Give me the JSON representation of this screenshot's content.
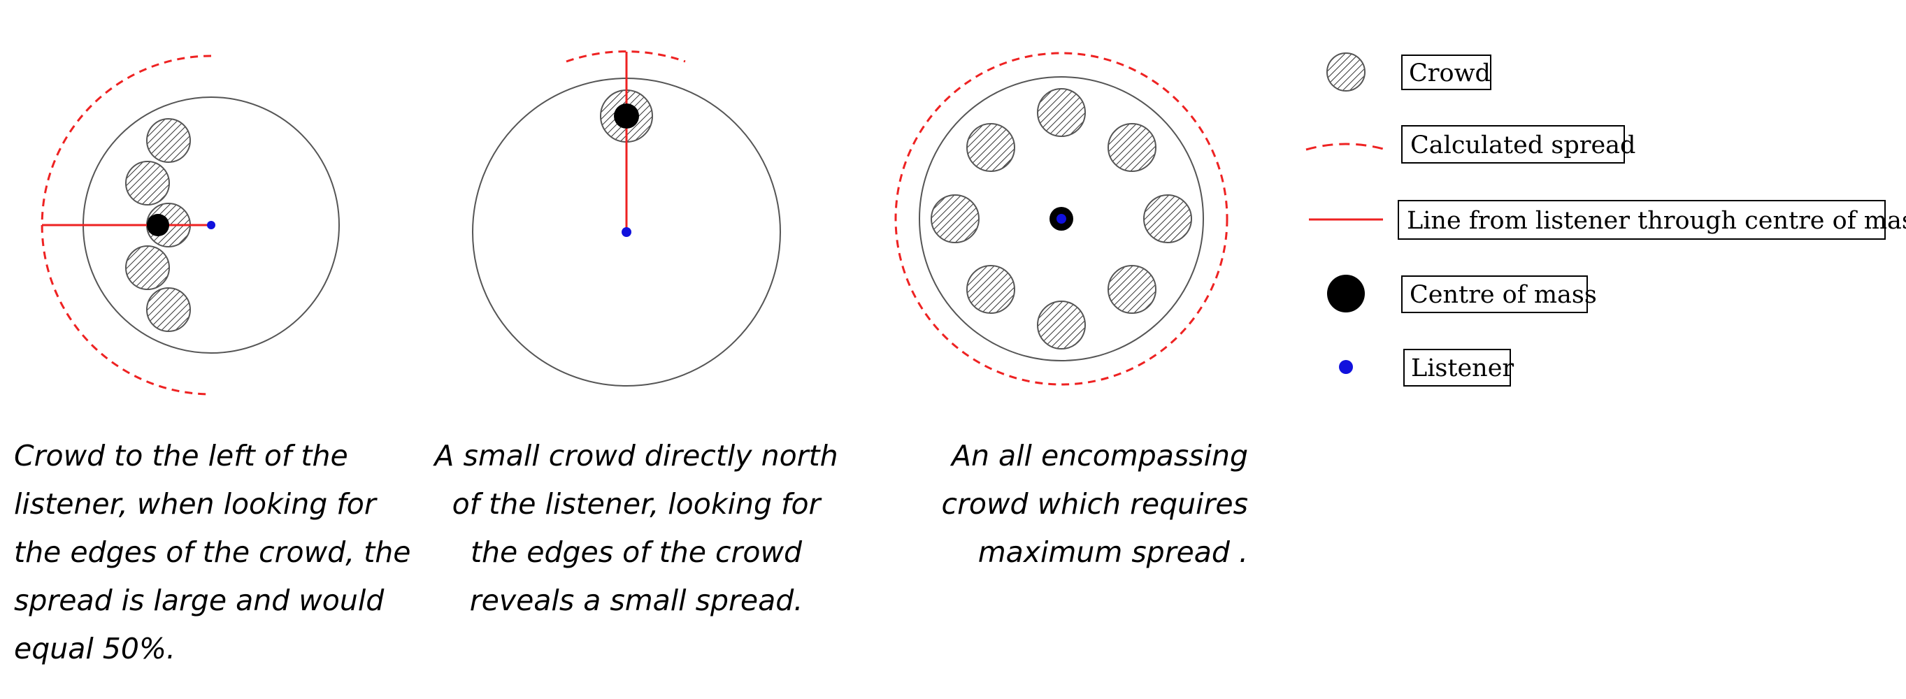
{
  "colors": {
    "spread": "#ee2222",
    "centre_of_mass": "#000000",
    "listener": "#1111dd",
    "outline": "#555555"
  },
  "captions": [
    "Crowd to the left of the\nlistener, when looking for\nthe edges of the crowd, the\nspread is large and would\nequal 50%.",
    "A small crowd directly north\nof the listener, looking for\nthe edges of the crowd\nreveals a small spread.",
    "An all encompassing\ncrowd which requires\nmaximum spread ."
  ],
  "legend": {
    "crowd": "Crowd",
    "calculated_spread": "Calculated spread",
    "line": "Line from listener through centre of mass",
    "centre_of_mass": "Centre of mass",
    "listener": "Listener"
  },
  "icons": {
    "crowd": "hatched-circle-icon",
    "calculated_spread": "red-dashed-arc-icon",
    "line": "red-line-icon",
    "centre_of_mass": "black-dot-icon",
    "listener": "blue-dot-icon"
  }
}
